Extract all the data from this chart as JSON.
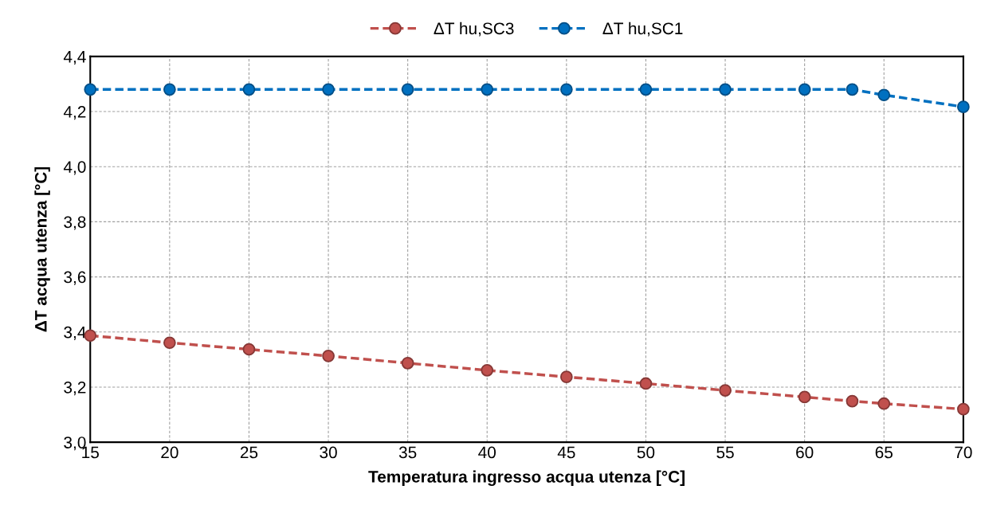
{
  "chart_data": {
    "type": "line",
    "xlabel": "Temperatura ingresso acqua utenza [°C]",
    "ylabel": "ΔT acqua utenza [°C]",
    "x": [
      15,
      20,
      25,
      30,
      35,
      40,
      45,
      50,
      55,
      60,
      63,
      65,
      70
    ],
    "series": [
      {
        "name": "ΔT hu,SC3",
        "color": "#c0504d",
        "values": [
          3.387,
          3.361,
          3.337,
          3.313,
          3.287,
          3.261,
          3.237,
          3.213,
          3.188,
          3.164,
          3.149,
          3.14,
          3.12
        ]
      },
      {
        "name": "ΔT hu,SC1",
        "color": "#0070c0",
        "values": [
          4.28,
          4.28,
          4.28,
          4.28,
          4.28,
          4.28,
          4.28,
          4.28,
          4.28,
          4.28,
          4.28,
          4.26,
          4.217
        ]
      }
    ],
    "xlim": [
      15,
      70
    ],
    "xticks": [
      15,
      20,
      25,
      30,
      35,
      40,
      45,
      50,
      55,
      60,
      65,
      70
    ],
    "ylim": [
      3.0,
      4.4
    ],
    "yticks": [
      {
        "value": 3.0,
        "label": "3,0"
      },
      {
        "value": 3.2,
        "label": "3,2"
      },
      {
        "value": 3.4,
        "label": "3,4"
      },
      {
        "value": 3.6,
        "label": "3,6"
      },
      {
        "value": 3.8,
        "label": "3,8"
      },
      {
        "value": 4.0,
        "label": "4,0"
      },
      {
        "value": 4.2,
        "label": "4,2"
      },
      {
        "value": 4.4,
        "label": "4,4"
      }
    ],
    "grid": true,
    "legend": "top",
    "marker": "circle",
    "line_style": "dashed"
  }
}
